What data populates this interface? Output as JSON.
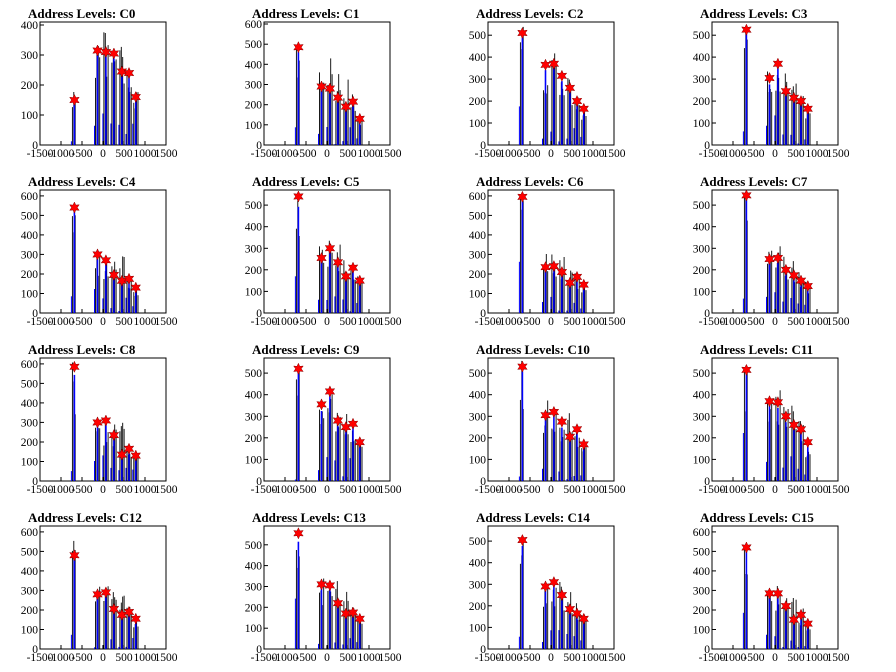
{
  "chart_data": [
    {
      "type": "bar",
      "title": "Address Levels: C0",
      "xlim": [
        -1500,
        1500
      ],
      "ylim": [
        0,
        410
      ],
      "yticks": [
        0,
        100,
        200,
        300,
        400
      ],
      "xticks": [
        -1500,
        -1000,
        -500,
        0,
        500,
        1000,
        1500
      ],
      "markers_x": [
        -680,
        -130,
        70,
        260,
        450,
        620,
        780
      ],
      "markers_y": [
        150,
        315,
        310,
        305,
        245,
        240,
        160
      ],
      "black_heights": [
        200,
        400,
        400,
        390,
        350,
        250,
        180
      ]
    },
    {
      "type": "bar",
      "title": "Address Levels: C1",
      "xlim": [
        -1500,
        1500
      ],
      "ylim": [
        0,
        610
      ],
      "yticks": [
        0,
        100,
        200,
        300,
        400,
        500,
        600
      ],
      "xticks": [
        -1500,
        -1000,
        -500,
        0,
        500,
        1000,
        1500
      ],
      "markers_x": [
        -680,
        -130,
        70,
        260,
        450,
        620,
        780
      ],
      "markers_y": [
        485,
        290,
        280,
        235,
        190,
        215,
        130
      ],
      "black_heights": [
        590,
        370,
        430,
        370,
        330,
        260,
        160
      ]
    },
    {
      "type": "bar",
      "title": "Address Levels: C2",
      "xlim": [
        -1500,
        1500
      ],
      "ylim": [
        0,
        560
      ],
      "yticks": [
        0,
        100,
        200,
        300,
        400,
        500
      ],
      "xticks": [
        -1500,
        -1000,
        -500,
        0,
        500,
        1000,
        1500
      ],
      "markers_x": [
        -680,
        -130,
        70,
        260,
        450,
        620,
        780
      ],
      "markers_y": [
        510,
        365,
        370,
        315,
        260,
        200,
        165
      ],
      "black_heights": [
        560,
        410,
        420,
        350,
        310,
        280,
        180
      ]
    },
    {
      "type": "bar",
      "title": "Address Levels: C3",
      "xlim": [
        -1500,
        1500
      ],
      "ylim": [
        0,
        560
      ],
      "yticks": [
        0,
        100,
        200,
        300,
        400,
        500
      ],
      "xticks": [
        -1500,
        -1000,
        -500,
        0,
        500,
        1000,
        1500
      ],
      "markers_x": [
        -680,
        -130,
        70,
        260,
        450,
        620,
        780
      ],
      "markers_y": [
        525,
        305,
        370,
        245,
        215,
        200,
        165
      ],
      "black_heights": [
        550,
        400,
        410,
        380,
        290,
        250,
        180
      ]
    },
    {
      "type": "bar",
      "title": "Address Levels: C4",
      "xlim": [
        -1500,
        1500
      ],
      "ylim": [
        0,
        630
      ],
      "yticks": [
        0,
        100,
        200,
        300,
        400,
        500,
        600
      ],
      "xticks": [
        -1500,
        -1000,
        -500,
        0,
        500,
        1000,
        1500
      ],
      "markers_x": [
        -680,
        -130,
        70,
        260,
        450,
        620,
        780
      ],
      "markers_y": [
        540,
        300,
        270,
        195,
        165,
        175,
        130
      ],
      "black_heights": [
        570,
        320,
        300,
        290,
        300,
        200,
        150
      ]
    },
    {
      "type": "bar",
      "title": "Address Levels: C5",
      "xlim": [
        -1500,
        1500
      ],
      "ylim": [
        0,
        570
      ],
      "yticks": [
        0,
        100,
        200,
        300,
        400,
        500
      ],
      "xticks": [
        -1500,
        -1000,
        -500,
        0,
        500,
        1000,
        1500
      ],
      "markers_x": [
        -680,
        -130,
        70,
        260,
        450,
        620,
        780
      ],
      "markers_y": [
        540,
        255,
        300,
        235,
        170,
        210,
        150
      ],
      "black_heights": [
        560,
        330,
        340,
        330,
        290,
        240,
        180
      ]
    },
    {
      "type": "bar",
      "title": "Address Levels: C6",
      "xlim": [
        -1500,
        1500
      ],
      "ylim": [
        0,
        630
      ],
      "yticks": [
        0,
        100,
        200,
        300,
        400,
        500,
        600
      ],
      "xticks": [
        -1500,
        -1000,
        -500,
        0,
        500,
        1000,
        1500
      ],
      "markers_x": [
        -680,
        -130,
        70,
        260,
        450,
        620,
        780
      ],
      "markers_y": [
        595,
        235,
        240,
        210,
        155,
        185,
        145
      ],
      "black_heights": [
        620,
        330,
        300,
        290,
        270,
        220,
        170
      ]
    },
    {
      "type": "bar",
      "title": "Address Levels: C7",
      "xlim": [
        -1500,
        1500
      ],
      "ylim": [
        0,
        570
      ],
      "yticks": [
        0,
        100,
        200,
        300,
        400,
        500
      ],
      "xticks": [
        -1500,
        -1000,
        -500,
        0,
        500,
        1000,
        1500
      ],
      "markers_x": [
        -680,
        -130,
        70,
        260,
        450,
        620,
        780
      ],
      "markers_y": [
        545,
        250,
        255,
        200,
        175,
        150,
        125
      ],
      "black_heights": [
        560,
        300,
        310,
        270,
        250,
        190,
        150
      ]
    },
    {
      "type": "bar",
      "title": "Address Levels: C8",
      "xlim": [
        -1500,
        1500
      ],
      "ylim": [
        0,
        630
      ],
      "yticks": [
        0,
        100,
        200,
        300,
        400,
        500,
        600
      ],
      "xticks": [
        -1500,
        -1000,
        -500,
        0,
        500,
        1000,
        1500
      ],
      "markers_x": [
        -680,
        -130,
        70,
        260,
        450,
        620,
        780
      ],
      "markers_y": [
        585,
        300,
        310,
        235,
        135,
        165,
        130
      ],
      "black_heights": [
        620,
        370,
        320,
        320,
        300,
        200,
        160
      ]
    },
    {
      "type": "bar",
      "title": "Address Levels: C9",
      "xlim": [
        -1500,
        1500
      ],
      "ylim": [
        0,
        570
      ],
      "yticks": [
        0,
        100,
        200,
        300,
        400,
        500
      ],
      "xticks": [
        -1500,
        -1000,
        -500,
        0,
        500,
        1000,
        1500
      ],
      "markers_x": [
        -680,
        -130,
        70,
        260,
        450,
        620,
        780
      ],
      "markers_y": [
        520,
        355,
        415,
        280,
        250,
        265,
        180
      ],
      "black_heights": [
        560,
        410,
        430,
        410,
        330,
        290,
        200
      ]
    },
    {
      "type": "bar",
      "title": "Address Levels: C10",
      "xlim": [
        -1500,
        1500
      ],
      "ylim": [
        0,
        570
      ],
      "yticks": [
        0,
        100,
        200,
        300,
        400,
        500
      ],
      "xticks": [
        -1500,
        -1000,
        -500,
        0,
        500,
        1000,
        1500
      ],
      "markers_x": [
        -680,
        -130,
        70,
        260,
        450,
        620,
        780
      ],
      "markers_y": [
        530,
        305,
        320,
        275,
        205,
        240,
        170
      ],
      "black_heights": [
        560,
        400,
        410,
        330,
        330,
        260,
        200
      ]
    },
    {
      "type": "bar",
      "title": "Address Levels: C11",
      "xlim": [
        -1500,
        1500
      ],
      "ylim": [
        0,
        570
      ],
      "yticks": [
        0,
        100,
        200,
        300,
        400,
        500
      ],
      "xticks": [
        -1500,
        -1000,
        -500,
        0,
        500,
        1000,
        1500
      ],
      "markers_x": [
        -680,
        -130,
        70,
        260,
        450,
        620,
        780
      ],
      "markers_y": [
        515,
        370,
        365,
        300,
        260,
        240,
        180
      ],
      "black_heights": [
        540,
        460,
        450,
        380,
        360,
        290,
        200
      ]
    },
    {
      "type": "bar",
      "title": "Address Levels: C12",
      "xlim": [
        -1500,
        1500
      ],
      "ylim": [
        0,
        630
      ],
      "yticks": [
        0,
        100,
        200,
        300,
        400,
        500,
        600
      ],
      "xticks": [
        -1500,
        -1000,
        -500,
        0,
        500,
        1000,
        1500
      ],
      "markers_x": [
        -680,
        -130,
        70,
        260,
        450,
        620,
        780
      ],
      "markers_y": [
        480,
        280,
        290,
        205,
        175,
        190,
        155
      ],
      "black_heights": [
        610,
        350,
        350,
        350,
        300,
        230,
        180
      ]
    },
    {
      "type": "bar",
      "title": "Address Levels: C13",
      "xlim": [
        -1500,
        1500
      ],
      "ylim": [
        0,
        590
      ],
      "yticks": [
        0,
        100,
        200,
        300,
        400,
        500
      ],
      "xticks": [
        -1500,
        -1000,
        -500,
        0,
        500,
        1000,
        1500
      ],
      "markers_x": [
        -680,
        -130,
        70,
        260,
        450,
        620,
        780
      ],
      "markers_y": [
        555,
        310,
        305,
        220,
        170,
        175,
        145
      ],
      "black_heights": [
        560,
        370,
        380,
        340,
        280,
        230,
        170
      ]
    },
    {
      "type": "bar",
      "title": "Address Levels: C14",
      "xlim": [
        -1500,
        1500
      ],
      "ylim": [
        0,
        570
      ],
      "yticks": [
        0,
        100,
        200,
        300,
        400,
        500
      ],
      "xticks": [
        -1500,
        -1000,
        -500,
        0,
        500,
        1000,
        1500
      ],
      "markers_x": [
        -680,
        -130,
        70,
        260,
        450,
        620,
        780
      ],
      "markers_y": [
        505,
        290,
        310,
        250,
        185,
        165,
        140
      ],
      "black_heights": [
        560,
        340,
        330,
        320,
        280,
        220,
        160
      ]
    },
    {
      "type": "bar",
      "title": "Address Levels: C15",
      "xlim": [
        -1500,
        1500
      ],
      "ylim": [
        0,
        630
      ],
      "yticks": [
        0,
        100,
        200,
        300,
        400,
        500,
        600
      ],
      "xticks": [
        -1500,
        -1000,
        -500,
        0,
        500,
        1000,
        1500
      ],
      "markers_x": [
        -680,
        -130,
        70,
        260,
        450,
        620,
        780
      ],
      "markers_y": [
        520,
        285,
        285,
        220,
        150,
        175,
        130
      ],
      "black_heights": [
        550,
        320,
        330,
        300,
        270,
        210,
        160
      ]
    }
  ],
  "colors": {
    "hist_black": "#000000",
    "hist_blue": "#0000ff",
    "marker": "#ff0000",
    "marker_edge": "#880000",
    "frame": "#000000"
  }
}
